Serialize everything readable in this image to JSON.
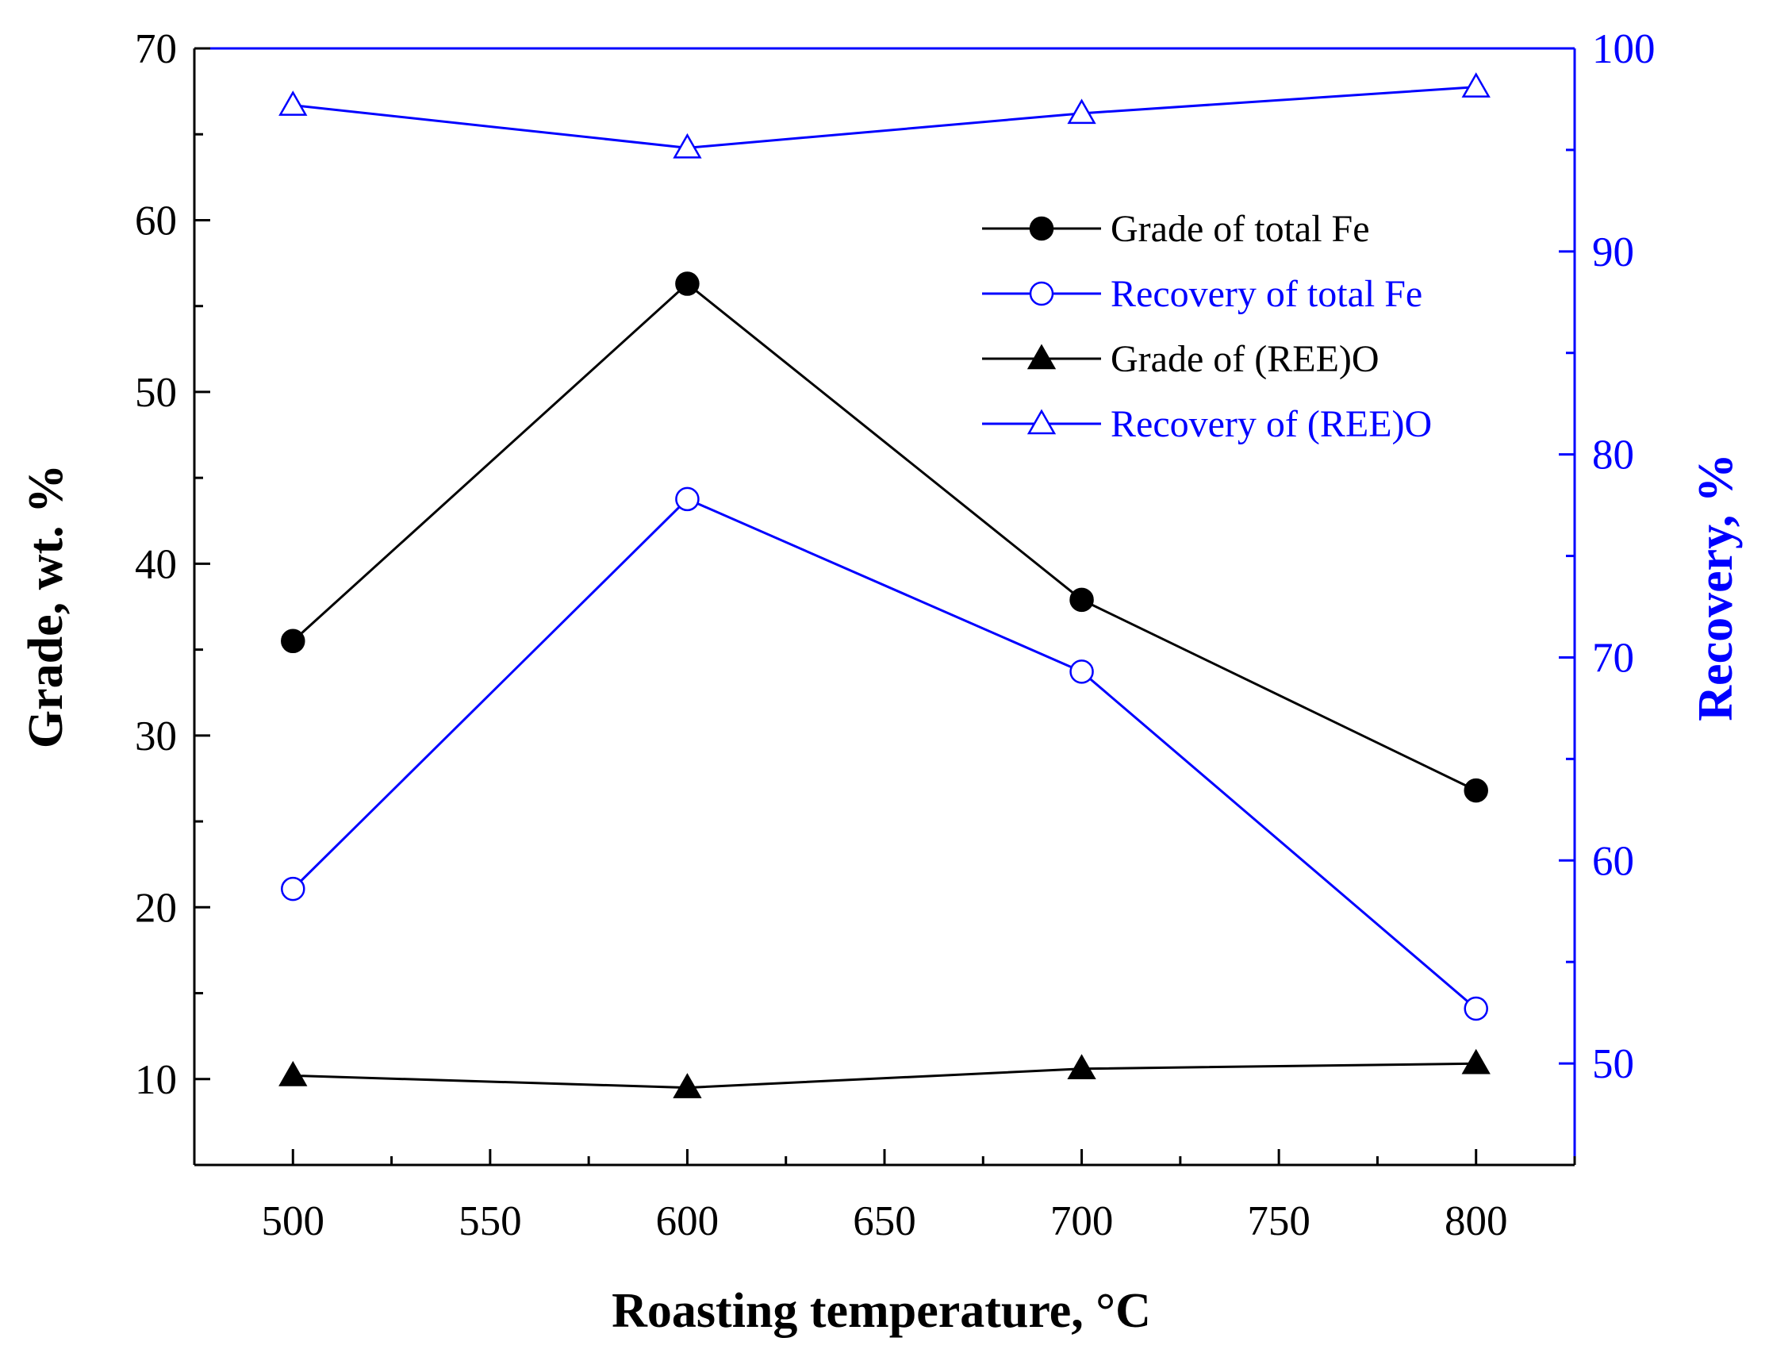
{
  "chart_data": {
    "type": "line",
    "title": "",
    "xlabel": "Roasting temperature, °C",
    "ylabel_left": "Grade, wt. %",
    "ylabel_right": "Recovery, %",
    "x": [
      500,
      600,
      700,
      800
    ],
    "xlim": [
      475,
      825
    ],
    "ylim_left": [
      5,
      70
    ],
    "ylim_right": [
      45,
      100
    ],
    "x_ticks": [
      "500",
      "550",
      "600",
      "650",
      "700",
      "750",
      "800"
    ],
    "y_ticks_left": [
      "10",
      "20",
      "30",
      "40",
      "50",
      "60",
      "70"
    ],
    "y_ticks_right": [
      "50",
      "60",
      "70",
      "80",
      "90",
      "100"
    ],
    "legend_position": "top-right",
    "colors": {
      "left_axis": "#000000",
      "right_axis": "#0000ff"
    },
    "series": [
      {
        "name": "Grade of total Fe",
        "axis": "left",
        "marker": "filled-circle",
        "color": "#000000",
        "values": [
          35.5,
          56.3,
          37.9,
          26.8
        ]
      },
      {
        "name": "Recovery of total Fe",
        "axis": "right",
        "marker": "open-circle",
        "color": "#0000ff",
        "values": [
          58.6,
          77.8,
          69.3,
          52.7
        ]
      },
      {
        "name": "Grade of (REE)O",
        "axis": "left",
        "marker": "filled-triangle",
        "color": "#000000",
        "values": [
          10.2,
          9.5,
          10.6,
          10.9
        ]
      },
      {
        "name": "Recovery of (REE)O",
        "axis": "right",
        "marker": "open-triangle",
        "color": "#0000ff",
        "values": [
          97.2,
          95.1,
          96.8,
          98.1
        ]
      }
    ]
  }
}
